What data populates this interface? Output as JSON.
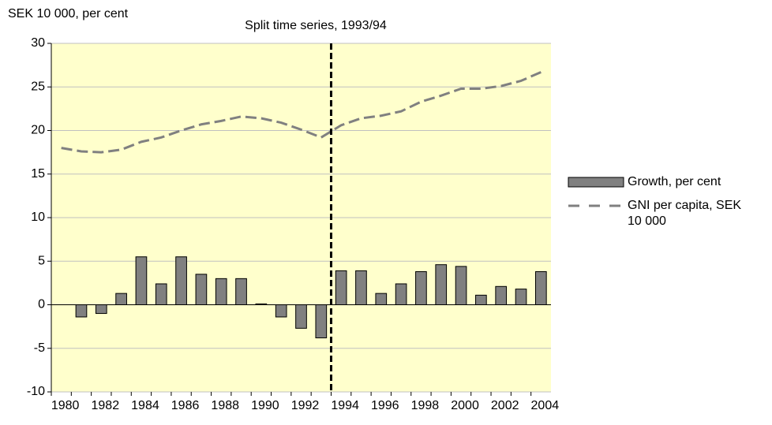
{
  "chart_data": {
    "type": "bar_line",
    "title": "Split time series, 1993/94",
    "y_label": "SEK 10 000, per cent",
    "categories": [
      "1980",
      null,
      "1982",
      null,
      "1984",
      null,
      "1986",
      null,
      "1988",
      null,
      "1990",
      null,
      "1992",
      null,
      "1994",
      null,
      "1996",
      null,
      "1998",
      null,
      "2000",
      null,
      "2002",
      null,
      "2004"
    ],
    "series": [
      {
        "name": "Growth, per cent",
        "type": "bar",
        "color": "#808080",
        "values": [
          null,
          -1.4,
          -1.0,
          1.3,
          5.5,
          2.4,
          5.5,
          3.5,
          3.0,
          3.0,
          0.1,
          -1.4,
          -2.7,
          -3.8,
          3.9,
          3.9,
          1.3,
          2.4,
          3.8,
          4.6,
          4.4,
          1.1,
          2.1,
          1.8,
          3.8
        ]
      },
      {
        "name": "GNI per capita, SEK 10 000",
        "type": "line",
        "color": "#808080",
        "values": [
          18.0,
          17.6,
          17.5,
          17.8,
          18.7,
          19.2,
          20.0,
          20.7,
          21.1,
          21.6,
          21.4,
          20.9,
          20.1,
          19.2,
          20.6,
          21.4,
          21.7,
          22.2,
          23.3,
          24.0,
          24.8,
          24.8,
          25.1,
          25.7,
          26.7
        ]
      }
    ],
    "ylim": [
      -10,
      30
    ],
    "yticks": [
      -10,
      -5,
      0,
      5,
      10,
      15,
      20,
      25,
      30
    ],
    "grid": true,
    "background": "#ffffcc",
    "legend": "right"
  }
}
